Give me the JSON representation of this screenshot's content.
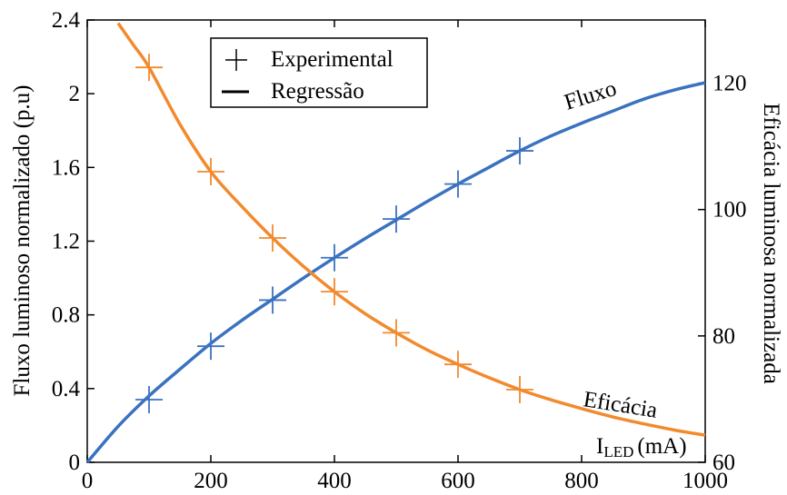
{
  "chart_data": {
    "type": "line",
    "title": "",
    "x_axis": {
      "ticks": [
        "0",
        "200",
        "400",
        "600",
        "800",
        "1000"
      ],
      "range": [
        0,
        1000
      ],
      "label_main": "I",
      "label_sub": "LED",
      "label_unit": "(mA)"
    },
    "y_left": {
      "label": "Fluxo luminoso normalizado (p.u)",
      "ticks": [
        "0",
        "0.4",
        "0.8",
        "1.2",
        "1.6",
        "2",
        "2.4"
      ],
      "range": [
        0,
        2.4
      ]
    },
    "y_right": {
      "label": "Eficácia luminosa normalizada",
      "ticks": [
        "60",
        "80",
        "100",
        "120"
      ],
      "range": [
        60,
        130
      ]
    },
    "legend": {
      "placement": "top-center",
      "items": [
        {
          "label": "Experimental",
          "marker": "plus"
        },
        {
          "label": "Regressão",
          "marker": "line"
        }
      ]
    },
    "series": [
      {
        "name": "Fluxo",
        "axis": "left",
        "color": "#3a72c0",
        "points_x": [
          100,
          200,
          300,
          400,
          500,
          600,
          700
        ],
        "points_y": [
          0.34,
          0.63,
          0.88,
          1.11,
          1.32,
          1.51,
          1.69
        ],
        "curve_x": [
          0,
          50,
          100,
          150,
          200,
          250,
          300,
          350,
          400,
          450,
          500,
          550,
          600,
          650,
          700,
          750,
          800,
          850,
          900,
          950,
          1000
        ],
        "curve_y": [
          0,
          0.195,
          0.36,
          0.505,
          0.645,
          0.77,
          0.885,
          1.0,
          1.11,
          1.215,
          1.315,
          1.415,
          1.51,
          1.6,
          1.69,
          1.77,
          1.84,
          1.905,
          1.97,
          2.02,
          2.06
        ]
      },
      {
        "name": "Eficácia",
        "axis": "right",
        "color": "#f28a2e",
        "points_x": [
          100,
          200,
          300,
          400,
          500,
          600,
          700
        ],
        "points_y": [
          122.5,
          106.0,
          95.5,
          87.0,
          80.5,
          75.5,
          71.5
        ],
        "curve_x": [
          50,
          75,
          100,
          150,
          200,
          250,
          300,
          350,
          400,
          450,
          500,
          550,
          600,
          650,
          700,
          750,
          800,
          850,
          900,
          950,
          1000
        ],
        "curve_y": [
          129.5,
          126.0,
          122.5,
          113.5,
          106.0,
          100.5,
          95.5,
          91.0,
          87.0,
          83.5,
          80.5,
          77.8,
          75.5,
          73.4,
          71.5,
          69.9,
          68.5,
          67.2,
          66.1,
          65.1,
          64.3
        ]
      }
    ],
    "annotations": [
      {
        "text": "Fluxo",
        "series": "Fluxo"
      },
      {
        "text": "Eficácia",
        "series": "Eficácia"
      }
    ],
    "grid": false
  }
}
